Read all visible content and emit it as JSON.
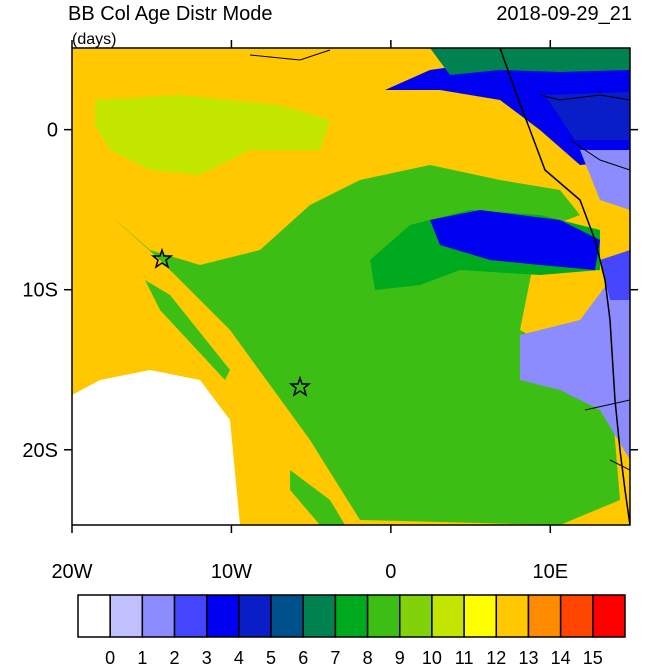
{
  "title": "BB Col Age Distr Mode",
  "subtitle": "(days)",
  "date": "2018-09-29_21",
  "map": {
    "xlim": [
      -20,
      15
    ],
    "ylim": [
      -24.7,
      5.1
    ],
    "xticks": [
      {
        "value": -20,
        "label": "20W"
      },
      {
        "value": -10,
        "label": "10W"
      },
      {
        "value": 0,
        "label": "0"
      },
      {
        "value": 10,
        "label": "10E"
      }
    ],
    "yticks": [
      {
        "value": 0,
        "label": "0"
      },
      {
        "value": -10,
        "label": "10S"
      },
      {
        "value": -20,
        "label": "20S"
      }
    ]
  },
  "colorbar": {
    "levels": [
      0,
      1,
      2,
      3,
      4,
      5,
      6,
      7,
      8,
      9,
      10,
      11,
      12,
      13,
      14,
      15
    ],
    "colors": [
      "#ffffff",
      "#c0c0ff",
      "#8c8cff",
      "#4646ff",
      "#0000f0",
      "#0a1ec8",
      "#00508c",
      "#008250",
      "#00aa1e",
      "#3cbe14",
      "#82d20a",
      "#c3e600",
      "#ffff00",
      "#ffc800",
      "#ff8c00",
      "#ff4600",
      "#ff0000"
    ]
  }
}
